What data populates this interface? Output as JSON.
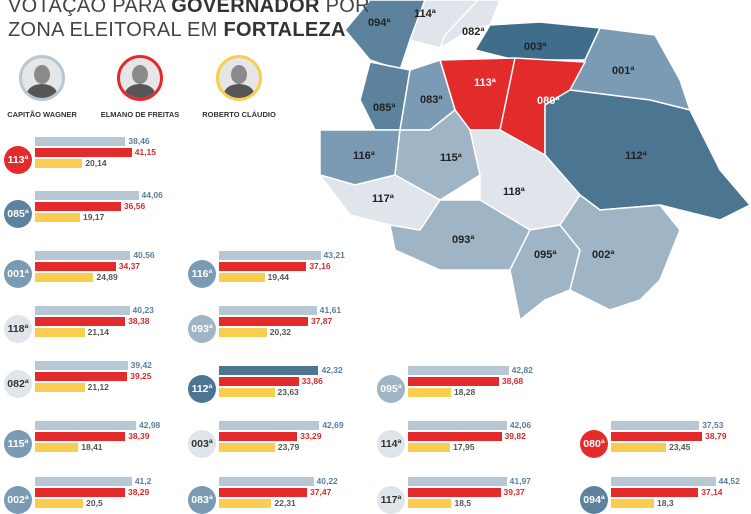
{
  "title": {
    "line1_prefix": "VOTAÇÃO PARA ",
    "line1_bold": "GOVERNADOR",
    "line1_suffix": " POR",
    "line2_prefix": "ZONA ELEITORAL EM ",
    "line2_bold": "FORTALEZA"
  },
  "candidates": [
    {
      "name": "CAPITÃO WAGNER",
      "ring_color": "#b7c7d4"
    },
    {
      "name": "ELMANO DE FREITAS",
      "ring_color": "#e42b2c"
    },
    {
      "name": "ROBERTO CLÁUDIO",
      "ring_color": "#f9cd4f"
    }
  ],
  "colors": {
    "wagner": "#b7c7d4",
    "elmano": "#e42b2c",
    "roberto": "#f9cd4f",
    "wagner_text": "#5b7f9a",
    "elmano_text": "#d62b2b",
    "roberto_text": "#555555"
  },
  "map_regions": [
    {
      "label": "094ª",
      "fill": "#5d829e"
    },
    {
      "label": "114ª",
      "fill": "#dfe5ea"
    },
    {
      "label": "082ª",
      "fill": "#dfe5ea"
    },
    {
      "label": "003ª",
      "fill": "#3f6d8a"
    },
    {
      "label": "001ª",
      "fill": "#7a9bb3"
    },
    {
      "label": "113ª",
      "fill": "#e42b2c"
    },
    {
      "label": "080ª",
      "fill": "#e42b2c"
    },
    {
      "label": "085ª",
      "fill": "#5d829e"
    },
    {
      "label": "083ª",
      "fill": "#7a9bb3"
    },
    {
      "label": "112ª",
      "fill": "#4b7590"
    },
    {
      "label": "116ª",
      "fill": "#7a9bb3"
    },
    {
      "label": "115ª",
      "fill": "#9fb4c4"
    },
    {
      "label": "118ª",
      "fill": "#dfe5ea"
    },
    {
      "label": "117ª",
      "fill": "#dfe5ea"
    },
    {
      "label": "093ª",
      "fill": "#9fb4c4"
    },
    {
      "label": "095ª",
      "fill": "#9fb4c4"
    },
    {
      "label": "002ª",
      "fill": "#9fb4c4"
    }
  ],
  "chart_data": {
    "type": "bar",
    "series_order": [
      "Capitão Wagner",
      "Elmano de Freitas",
      "Roberto Cláudio"
    ],
    "zones": [
      {
        "zone": "113ª",
        "badge_color": "#e42b2c",
        "values": [
          38.46,
          41.15,
          20.14
        ]
      },
      {
        "zone": "085ª",
        "badge_color": "#5d829e",
        "values": [
          44.06,
          36.56,
          19.17
        ]
      },
      {
        "zone": "001ª",
        "badge_color": "#7a9bb3",
        "values": [
          40.56,
          34.37,
          24.89
        ]
      },
      {
        "zone": "118ª",
        "badge_color": "#dfe5ea",
        "values": [
          40.23,
          38.38,
          21.14
        ]
      },
      {
        "zone": "082ª",
        "badge_color": "#dfe5ea",
        "values": [
          39.42,
          39.25,
          21.12
        ]
      },
      {
        "zone": "115ª",
        "badge_color": "#7a9bb3",
        "values": [
          42.98,
          38.39,
          18.41
        ]
      },
      {
        "zone": "002ª",
        "badge_color": "#7a9bb3",
        "values": [
          41.2,
          38.29,
          20.5
        ]
      },
      {
        "zone": "116ª",
        "badge_color": "#7a9bb3",
        "values": [
          43.21,
          37.16,
          19.44
        ]
      },
      {
        "zone": "093ª",
        "badge_color": "#9fb4c4",
        "values": [
          41.61,
          37.87,
          20.32
        ]
      },
      {
        "zone": "112ª",
        "badge_color": "#4b7590",
        "values": [
          42.32,
          33.86,
          23.63
        ]
      },
      {
        "zone": "003ª",
        "badge_color": "#dfe5ea",
        "values": [
          42.69,
          33.29,
          23.79
        ]
      },
      {
        "zone": "083ª",
        "badge_color": "#7a9bb3",
        "values": [
          40.22,
          37.47,
          22.31
        ]
      },
      {
        "zone": "095ª",
        "badge_color": "#9fb4c4",
        "values": [
          42.82,
          38.68,
          18.28
        ]
      },
      {
        "zone": "114ª",
        "badge_color": "#dfe5ea",
        "values": [
          42.06,
          39.82,
          17.95
        ]
      },
      {
        "zone": "117ª",
        "badge_color": "#dfe5ea",
        "values": [
          41.97,
          39.37,
          18.5
        ]
      },
      {
        "zone": "080ª",
        "badge_color": "#e42b2c",
        "values": [
          37.53,
          38.79,
          23.45
        ]
      },
      {
        "zone": "094ª",
        "badge_color": "#5d829e",
        "values": [
          44.52,
          37.14,
          18.3
        ]
      }
    ]
  }
}
